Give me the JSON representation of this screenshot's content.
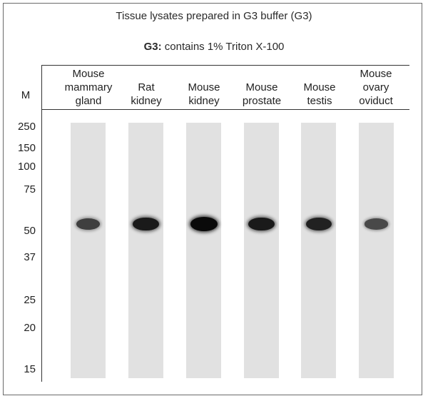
{
  "title": "Tissue lysates prepared in G3 buffer (G3)",
  "subtitle": {
    "bold": "G3:",
    "rest": " contains 1% Triton X-100"
  },
  "marker_header": "M",
  "lanes": [
    {
      "lines": [
        "Mouse",
        "mammary",
        "gland"
      ],
      "band_intensity": 0.55
    },
    {
      "lines": [
        "Rat",
        "kidney"
      ],
      "band_intensity": 0.85
    },
    {
      "lines": [
        "Mouse",
        "kidney"
      ],
      "band_intensity": 1.0
    },
    {
      "lines": [
        "Mouse",
        "prostate"
      ],
      "band_intensity": 0.85
    },
    {
      "lines": [
        "Mouse",
        "testis"
      ],
      "band_intensity": 0.8
    },
    {
      "lines": [
        "Mouse",
        "ovary",
        "oviduct"
      ],
      "band_intensity": 0.45
    }
  ],
  "markers": [
    "250",
    "150",
    "100",
    "75",
    "50",
    "37",
    "25",
    "20",
    "15"
  ],
  "colors": {
    "lane": "#e1e1e1",
    "band": "#0a0a0a",
    "frame": "#6a6a6a"
  }
}
